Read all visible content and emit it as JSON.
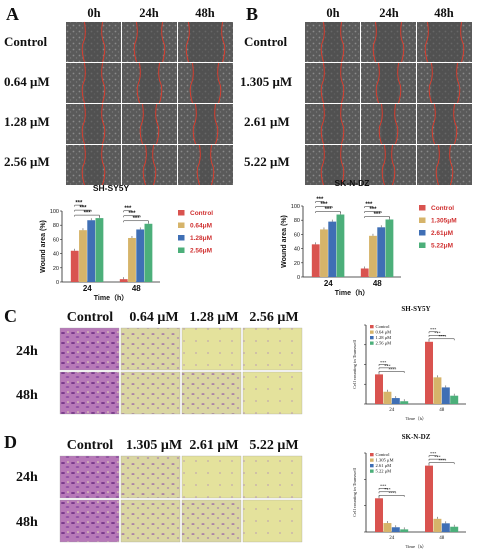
{
  "figure": {
    "colors": {
      "control": "#d9534f",
      "c1": "#d6b46a",
      "c2": "#3f6fb5",
      "c3": "#4caf7a"
    },
    "panel_A": {
      "label": "A",
      "time_headers": [
        "0h",
        "24h",
        "48h"
      ],
      "row_labels": [
        "Control",
        "0.64 μM",
        "1.28 μM",
        "2.56 μM"
      ]
    },
    "panel_B": {
      "label": "B",
      "time_headers": [
        "0h",
        "24h",
        "48h"
      ],
      "row_labels": [
        "Control",
        "1.305 μM",
        "2.61 μM",
        "5.22 μM"
      ]
    },
    "panel_C": {
      "label": "C",
      "col_headers": [
        "Control",
        "0.64 μM",
        "1.28 μM",
        "2.56 μM"
      ],
      "row_labels": [
        "24h",
        "48h"
      ]
    },
    "panel_D": {
      "label": "D",
      "col_headers": [
        "Control",
        "1.305 μM",
        "2.61 μM",
        "5.22 μM"
      ],
      "row_labels": [
        "24h",
        "48h"
      ]
    },
    "significance": "***"
  },
  "chart_data": [
    {
      "id": "wound_sh",
      "type": "bar",
      "title": "SH-SY5Y",
      "xlabel": "Time（h）",
      "ylabel": "Wound area (%)",
      "ylim": [
        0,
        100
      ],
      "yticks": [
        "0",
        "20",
        "40",
        "60",
        "80",
        "100"
      ],
      "categories": [
        "24",
        "48"
      ],
      "series": [
        {
          "name": "Control",
          "values": [
            44,
            4
          ]
        },
        {
          "name": "0.64μM",
          "values": [
            73,
            62
          ]
        },
        {
          "name": "1.28μM",
          "values": [
            87,
            74
          ]
        },
        {
          "name": "2.56μM",
          "values": [
            90,
            82
          ]
        }
      ],
      "legend": "right"
    },
    {
      "id": "wound_sk",
      "type": "bar",
      "title": "SK-N-DZ",
      "xlabel": "Time（h）",
      "ylabel": "Wound area (%)",
      "ylim": [
        0,
        100
      ],
      "yticks": [
        "0",
        "20",
        "40",
        "60",
        "80",
        "100"
      ],
      "categories": [
        "24",
        "48"
      ],
      "series": [
        {
          "name": "Control",
          "values": [
            46,
            12
          ]
        },
        {
          "name": "1.305μM",
          "values": [
            67,
            58
          ]
        },
        {
          "name": "2.61μM",
          "values": [
            78,
            70
          ]
        },
        {
          "name": "5.22μM",
          "values": [
            88,
            81
          ]
        }
      ],
      "legend": "right"
    },
    {
      "id": "trans_sh",
      "type": "bar",
      "title": "SH-SY5Y",
      "xlabel": "Time（h）",
      "ylabel": "Cell counting in Transwell",
      "ylim": [
        0,
        400
      ],
      "yticks": [
        "",
        "",
        "",
        "",
        ""
      ],
      "categories": [
        "24",
        "48"
      ],
      "series": [
        {
          "name": "Control",
          "values": [
            150,
            315
          ]
        },
        {
          "name": "0.64 μM",
          "values": [
            62,
            135
          ]
        },
        {
          "name": "1.28 μM",
          "values": [
            30,
            84
          ]
        },
        {
          "name": "2.56 μM",
          "values": [
            14,
            42
          ]
        }
      ],
      "legend": "top-left"
    },
    {
      "id": "trans_sk",
      "type": "bar",
      "title": "SK-N-DZ",
      "xlabel": "Time（h）",
      "ylabel": "Cell counting in Transwell",
      "ylim": [
        0,
        300
      ],
      "yticks": [
        "",
        "",
        "",
        ""
      ],
      "categories": [
        "24",
        "48"
      ],
      "series": [
        {
          "name": "Control",
          "values": [
            128,
            252
          ]
        },
        {
          "name": "1.305 μM",
          "values": [
            34,
            50
          ]
        },
        {
          "name": "2.61 μM",
          "values": [
            18,
            33
          ]
        },
        {
          "name": "5.22 μM",
          "values": [
            10,
            20
          ]
        }
      ],
      "legend": "top-left"
    }
  ]
}
